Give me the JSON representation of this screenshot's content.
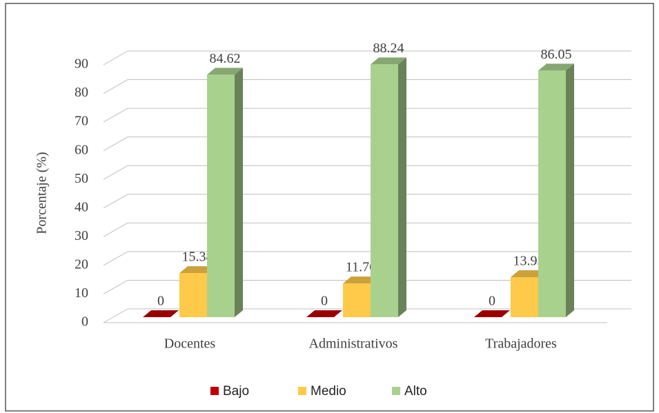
{
  "chart_data": {
    "type": "bar3d",
    "y_label": "Porcentaje (%)",
    "categories": [
      "Docentes",
      "Administrativos",
      "Trabajadores"
    ],
    "series": [
      {
        "name": "Bajo",
        "color": "#c00000",
        "values": [
          0,
          0,
          0
        ]
      },
      {
        "name": "Medio",
        "color": "#ffc94a",
        "values": [
          15.38,
          11.76,
          13.95
        ]
      },
      {
        "name": "Alto",
        "color": "#a9d18e",
        "values": [
          84.62,
          88.24,
          86.05
        ]
      }
    ],
    "ylim": [
      0,
      90
    ],
    "yticks": [
      0,
      10,
      20,
      30,
      40,
      50,
      60,
      70,
      80,
      90
    ],
    "grid": true,
    "legend": "bottom"
  }
}
